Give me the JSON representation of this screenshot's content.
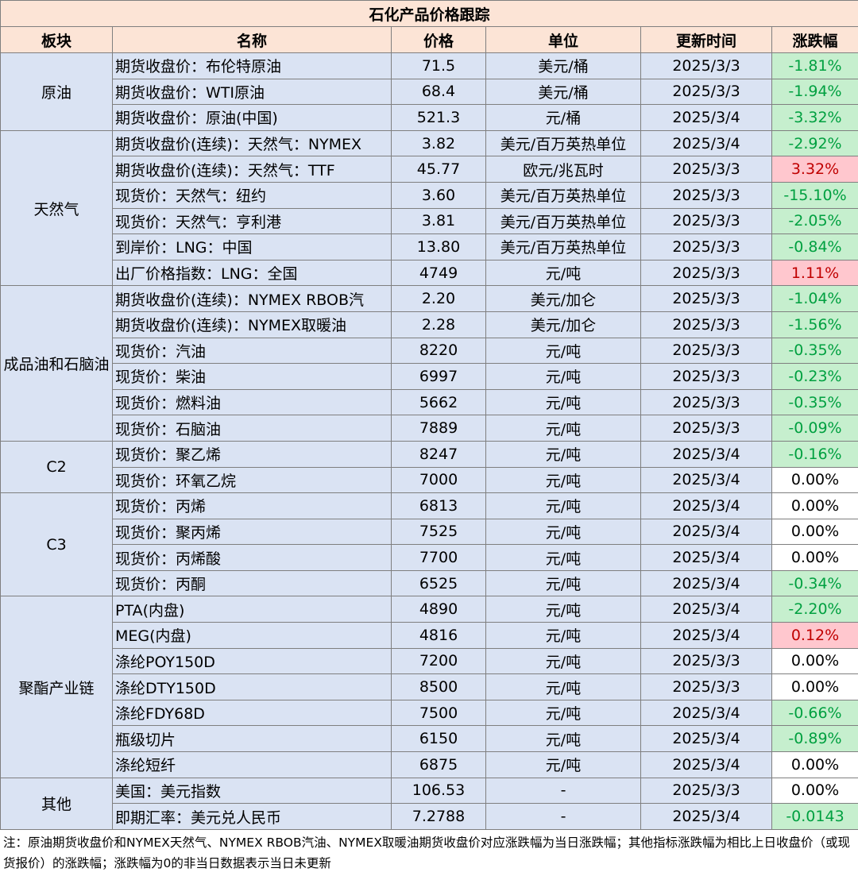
{
  "table": {
    "title": "石化产品价格跟踪",
    "headers": [
      "板块",
      "名称",
      "价格",
      "单位",
      "更新时间",
      "涨跌幅"
    ],
    "groups": [
      {
        "name": "原油",
        "rows": [
          [
            "期货收盘价：布伦特原油",
            "71.5",
            "美元/桶",
            "2025/3/3",
            "-1.81%"
          ],
          [
            "期货收盘价：WTI原油",
            "68.4",
            "美元/桶",
            "2025/3/3",
            "-1.94%"
          ],
          [
            "期货收盘价：原油(中国)",
            "521.3",
            "元/桶",
            "2025/3/4",
            "-3.32%"
          ]
        ]
      },
      {
        "name": "天然气",
        "rows": [
          [
            "期货收盘价(连续)：天然气：NYMEX",
            "3.82",
            "美元/百万英热单位",
            "2025/3/4",
            "-2.92%"
          ],
          [
            "期货收盘价(连续)：天然气：TTF",
            "45.77",
            "欧元/兆瓦时",
            "2025/3/3",
            "3.32%"
          ],
          [
            "现货价：天然气：纽约",
            "3.60",
            "美元/百万英热单位",
            "2025/3/3",
            "-15.10%"
          ],
          [
            "现货价：天然气：亨利港",
            "3.81",
            "美元/百万英热单位",
            "2025/3/3",
            "-2.05%"
          ],
          [
            "到岸价：LNG：中国",
            "13.80",
            "美元/百万英热单位",
            "2025/3/3",
            "-0.84%"
          ],
          [
            "出厂价格指数：LNG：全国",
            "4749",
            "元/吨",
            "2025/3/3",
            "1.11%"
          ]
        ]
      },
      {
        "name": "成品油和石脑油",
        "rows": [
          [
            "期货收盘价(连续)：NYMEX RBOB汽",
            "2.20",
            "美元/加仑",
            "2025/3/3",
            "-1.04%"
          ],
          [
            "期货收盘价(连续)：NYMEX取暖油",
            "2.28",
            "美元/加仑",
            "2025/3/3",
            "-1.56%"
          ],
          [
            "现货价：汽油",
            "8220",
            "元/吨",
            "2025/3/3",
            "-0.35%"
          ],
          [
            "现货价：柴油",
            "6997",
            "元/吨",
            "2025/3/3",
            "-0.23%"
          ],
          [
            "现货价：燃料油",
            "5662",
            "元/吨",
            "2025/3/3",
            "-0.35%"
          ],
          [
            "现货价：石脑油",
            "7889",
            "元/吨",
            "2025/3/3",
            "-0.09%"
          ]
        ]
      },
      {
        "name": "C2",
        "rows": [
          [
            "现货价：聚乙烯",
            "8247",
            "元/吨",
            "2025/3/4",
            "-0.16%"
          ],
          [
            "现货价：环氧乙烷",
            "7000",
            "元/吨",
            "2025/3/4",
            "0.00%"
          ]
        ]
      },
      {
        "name": "C3",
        "rows": [
          [
            "现货价：丙烯",
            "6813",
            "元/吨",
            "2025/3/4",
            "0.00%"
          ],
          [
            "现货价：聚丙烯",
            "7525",
            "元/吨",
            "2025/3/4",
            "0.00%"
          ],
          [
            "现货价：丙烯酸",
            "7700",
            "元/吨",
            "2025/3/4",
            "0.00%"
          ],
          [
            "现货价：丙酮",
            "6525",
            "元/吨",
            "2025/3/4",
            "-0.34%"
          ]
        ]
      },
      {
        "name": "聚酯产业链",
        "rows": [
          [
            "PTA(内盘)",
            "4890",
            "元/吨",
            "2025/3/4",
            "-2.20%"
          ],
          [
            "MEG(内盘)",
            "4816",
            "元/吨",
            "2025/3/4",
            "0.12%"
          ],
          [
            "涤纶POY150D",
            "7200",
            "元/吨",
            "2025/3/3",
            "0.00%"
          ],
          [
            "涤纶DTY150D",
            "8500",
            "元/吨",
            "2025/3/3",
            "0.00%"
          ],
          [
            "涤纶FDY68D",
            "7500",
            "元/吨",
            "2025/3/4",
            "-0.66%"
          ],
          [
            "瓶级切片",
            "6150",
            "元/吨",
            "2025/3/4",
            "-0.89%"
          ],
          [
            "涤纶短纤",
            "6875",
            "元/吨",
            "2025/3/4",
            "0.00%"
          ]
        ]
      },
      {
        "name": "其他",
        "rows": [
          [
            "美国：美元指数",
            "106.53",
            "-",
            "2025/3/3",
            "0.00%"
          ],
          [
            "即期汇率：美元兑人民币",
            "7.2788",
            "-",
            "2025/3/4",
            "-0.0143"
          ]
        ]
      }
    ],
    "note": "注：原油期货收盘价和NYMEX天然气、NYMEX RBOB汽油、NYMEX取暖油期货收盘价对应涨跌幅为当日涨跌幅；其他指标涨跌幅为相比上日收盘价（或现货报价）的涨跌幅；涨跌幅为0的非当日数据表示当日未更新"
  }
}
